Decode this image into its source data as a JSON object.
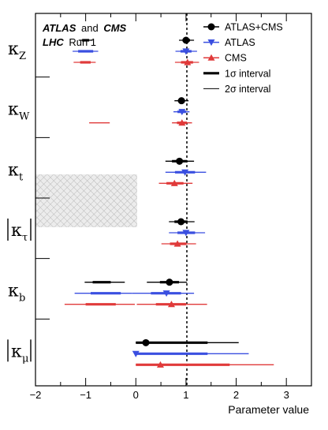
{
  "experiment": {
    "atlas": "ATLAS",
    "and": "and",
    "cms": "CMS",
    "lhc": "LHC",
    "run": "Run 1"
  },
  "chart_data": {
    "type": "scatter",
    "xlabel": "Parameter value",
    "xlim": [
      -2,
      3.5
    ],
    "xticks": [
      -2,
      -1,
      0,
      1,
      2,
      3
    ],
    "reference_line": 1,
    "legend_position": "top-right",
    "legend": [
      {
        "key": "atlas_cms",
        "label": "ATLAS+CMS",
        "color": "#000000",
        "marker": "circle"
      },
      {
        "key": "atlas",
        "label": "ATLAS",
        "color": "#3a4fe0",
        "marker": "triangle-down"
      },
      {
        "key": "cms",
        "label": "CMS",
        "color": "#e03a3a",
        "marker": "triangle-up"
      },
      {
        "key": "one_sigma",
        "label": "1σ interval",
        "style": "thick"
      },
      {
        "key": "two_sigma",
        "label": "2σ interval",
        "style": "thin"
      }
    ],
    "rows": [
      {
        "label": "κ",
        "sub": "Z",
        "abs": false,
        "series": [
          {
            "key": "atlas_cms",
            "value": 1.0,
            "sigma1": [
              [
                0.93,
                1.08
              ],
              [
                -1.07,
                -0.93
              ]
            ],
            "sigma2": [
              [
                0.86,
                1.16
              ],
              [
                -1.14,
                -0.86
              ]
            ]
          },
          {
            "key": "atlas",
            "value": 1.0,
            "sigma1": [
              [
                0.89,
                1.11
              ],
              [
                -1.15,
                -0.85
              ]
            ],
            "sigma2": [
              [
                0.79,
                1.22
              ],
              [
                -1.26,
                -0.75
              ]
            ]
          },
          {
            "key": "cms",
            "value": 1.03,
            "sigma1": [
              [
                0.9,
                1.14
              ],
              [
                -1.11,
                -0.9
              ]
            ],
            "sigma2": [
              [
                0.78,
                1.26
              ],
              [
                -1.24,
                -0.8
              ]
            ]
          }
        ]
      },
      {
        "label": "κ",
        "sub": "W",
        "abs": false,
        "series": [
          {
            "key": "atlas_cms",
            "value": 0.91,
            "sigma1": [
              [
                0.84,
                0.98
              ]
            ],
            "sigma2": [
              [
                0.77,
                1.05
              ]
            ]
          },
          {
            "key": "atlas",
            "value": 0.92,
            "sigma1": [
              [
                0.83,
                1.0
              ]
            ],
            "sigma2": [
              [
                0.75,
                1.07
              ]
            ]
          },
          {
            "key": "cms",
            "value": 0.92,
            "sigma1": [
              [
                0.82,
                1.02
              ]
            ],
            "sigma2": [
              [
                0.72,
                1.12
              ],
              [
                -0.93,
                -0.52
              ]
            ]
          }
        ]
      },
      {
        "label": "κ",
        "sub": "t",
        "abs": false,
        "series": [
          {
            "key": "atlas_cms",
            "value": 0.87,
            "sigma1": [
              [
                0.72,
                1.02
              ]
            ],
            "sigma2": [
              [
                0.59,
                1.16
              ]
            ]
          },
          {
            "key": "atlas",
            "value": 0.98,
            "sigma1": [
              [
                0.78,
                1.18
              ]
            ],
            "sigma2": [
              [
                0.59,
                1.4
              ]
            ]
          },
          {
            "key": "cms",
            "value": 0.77,
            "sigma1": [
              [
                0.61,
                0.95
              ]
            ],
            "sigma2": [
              [
                0.46,
                1.13
              ]
            ]
          }
        ]
      },
      {
        "label": "κ",
        "sub": "τ",
        "abs": true,
        "series": [
          {
            "key": "atlas_cms",
            "value": 0.9,
            "sigma1": [
              [
                0.77,
                1.03
              ]
            ],
            "sigma2": [
              [
                0.66,
                1.17
              ]
            ]
          },
          {
            "key": "atlas",
            "value": 1.0,
            "sigma1": [
              [
                0.83,
                1.18
              ]
            ],
            "sigma2": [
              [
                0.66,
                1.38
              ]
            ]
          },
          {
            "key": "cms",
            "value": 0.83,
            "sigma1": [
              [
                0.68,
                1.01
              ]
            ],
            "sigma2": [
              [
                0.51,
                1.2
              ]
            ]
          }
        ]
      },
      {
        "label": "κ",
        "sub": "b",
        "abs": false,
        "series": [
          {
            "key": "atlas_cms",
            "value": 0.67,
            "sigma1": [
              [
                0.48,
                0.86
              ],
              [
                -0.86,
                -0.5
              ]
            ],
            "sigma2": [
              [
                0.22,
                1.02
              ],
              [
                -1.02,
                -0.22
              ]
            ]
          },
          {
            "key": "atlas",
            "value": 0.61,
            "sigma1": [
              [
                0.3,
                0.9
              ],
              [
                -0.9,
                -0.3
              ]
            ],
            "sigma2": [
              [
                -0.08,
                1.16
              ],
              [
                -1.22,
                -0.08
              ]
            ]
          },
          {
            "key": "cms",
            "value": 0.71,
            "sigma1": [
              [
                0.4,
                1.0
              ],
              [
                -1.0,
                -0.4
              ]
            ],
            "sigma2": [
              [
                0.02,
                1.42
              ],
              [
                -1.42,
                -0.02
              ]
            ]
          }
        ]
      },
      {
        "label": "κ",
        "sub": "μ",
        "abs": true,
        "series": [
          {
            "key": "atlas_cms",
            "value": 0.2,
            "sigma1": [
              [
                0.0,
                1.43
              ]
            ],
            "sigma2": [
              [
                0.0,
                2.05
              ]
            ]
          },
          {
            "key": "atlas",
            "value": 0.0,
            "sigma1": [
              [
                0.0,
                1.43
              ]
            ],
            "sigma2": [
              [
                0.0,
                2.25
              ]
            ]
          },
          {
            "key": "cms",
            "value": 0.49,
            "sigma1": [
              [
                0.0,
                1.87
              ]
            ],
            "sigma2": [
              [
                0.0,
                2.75
              ]
            ]
          }
        ]
      }
    ]
  }
}
